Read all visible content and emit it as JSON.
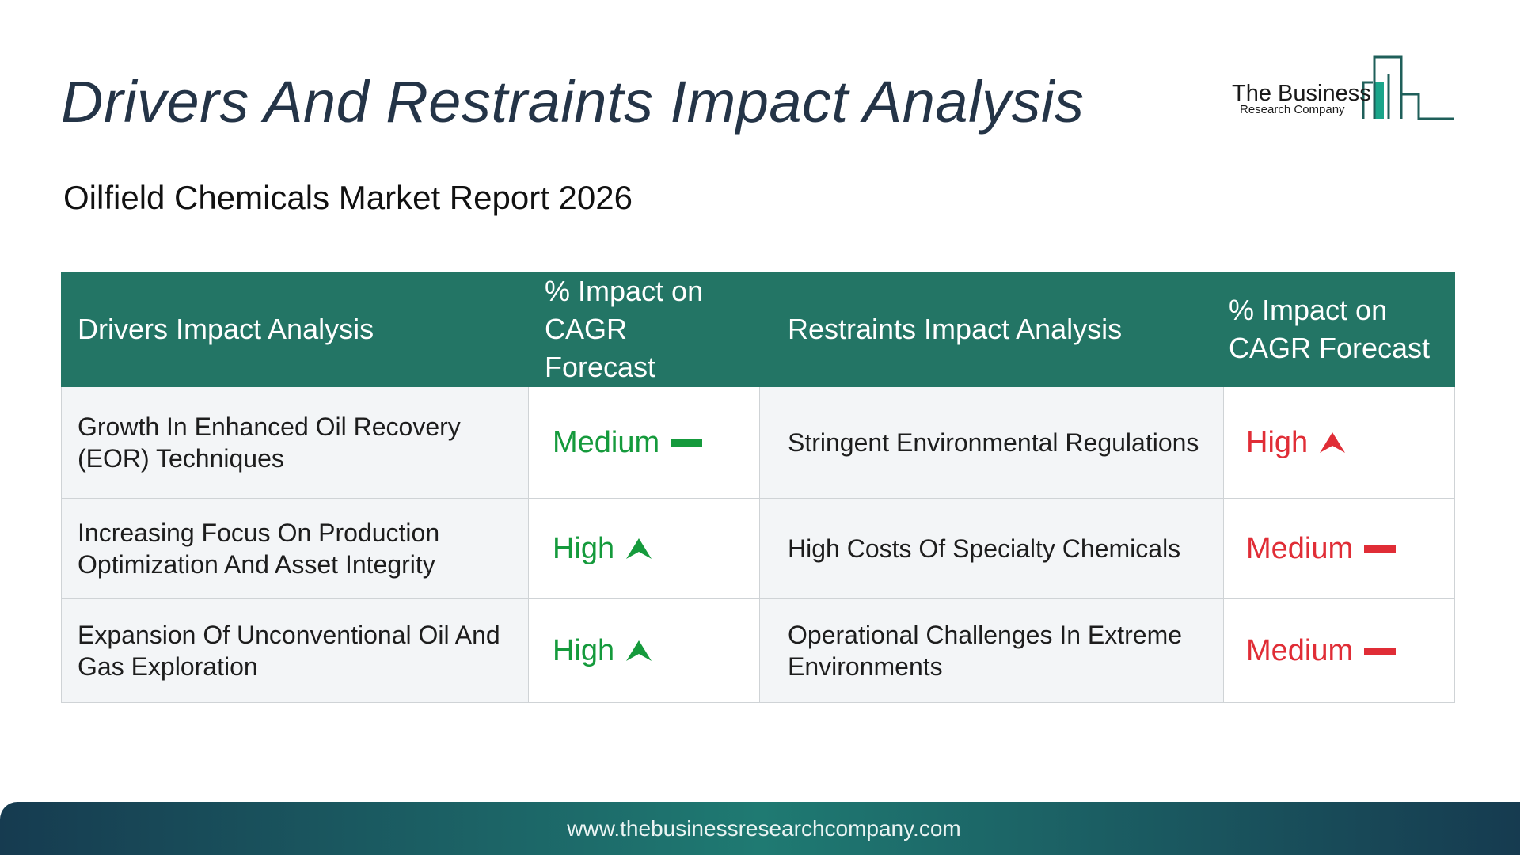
{
  "title": "Drivers And Restraints Impact Analysis",
  "subtitle": "Oilfield Chemicals Market Report 2026",
  "logo": {
    "line1": "The Business",
    "line2": "Research Company"
  },
  "table": {
    "headers": {
      "drivers": "Drivers Impact Analysis",
      "drivers_impact": "% Impact on CAGR Forecast",
      "restraints": "Restraints Impact Analysis",
      "restraints_impact": "% Impact on CAGR Forecast"
    },
    "rows": [
      {
        "driver": "Growth In Enhanced Oil Recovery (EOR) Techniques",
        "driver_impact": "Medium",
        "driver_icon": "dash-icon",
        "restraint": "Stringent Environmental Regulations",
        "restraint_impact": "High",
        "restraint_icon": "arrow-up-icon"
      },
      {
        "driver": "Increasing Focus On Production Optimization And Asset Integrity",
        "driver_impact": "High",
        "driver_icon": "arrow-up-icon",
        "restraint": "High Costs Of Specialty Chemicals",
        "restraint_impact": "Medium",
        "restraint_icon": "dash-icon"
      },
      {
        "driver": "Expansion Of Unconventional Oil And Gas Exploration",
        "driver_impact": "High",
        "driver_icon": "arrow-up-icon",
        "restraint": "Operational Challenges In Extreme Environments",
        "restraint_impact": "Medium",
        "restraint_icon": "dash-icon"
      }
    ]
  },
  "colors": {
    "header_bg": "#237565",
    "driver_impact": "#159a3c",
    "restraint_impact": "#e02d36",
    "title": "#243447"
  },
  "footer": {
    "url": "www.thebusinessresearchcompany.com"
  }
}
